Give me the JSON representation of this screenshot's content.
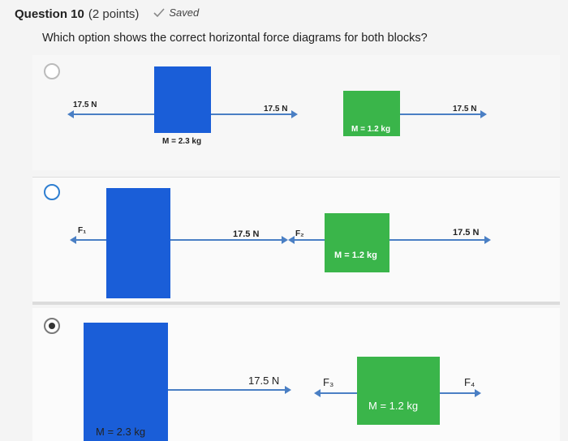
{
  "header": {
    "question_title": "Question 10",
    "points": "(2 points)",
    "saved_label": "Saved"
  },
  "question": {
    "text": "Which option shows the correct horizontal force diagrams for both blocks?"
  },
  "options": [
    {
      "selected": false,
      "left_block": {
        "mass_label": "M = 2.3 kg",
        "left_force": "17.5 N",
        "right_force": "17.5 N"
      },
      "right_block": {
        "mass_label": "M = 1.2 kg",
        "right_force": "17.5 N"
      }
    },
    {
      "selected": false,
      "left_block": {
        "left_force": "F₁",
        "right_force": "17.5 N"
      },
      "right_block": {
        "mass_label": "M = 1.2 kg",
        "left_force": "F₂",
        "right_force": "17.5 N"
      }
    },
    {
      "selected": true,
      "left_block": {
        "mass_label": "M = 2.3 kg",
        "right_force": "17.5 N"
      },
      "right_block": {
        "mass_label": "M = 1.2 kg",
        "left_force": "F₃",
        "right_force": "F₄"
      }
    }
  ],
  "colors": {
    "blue_block": "#1a5ed8",
    "green_block": "#3ab54a",
    "arrow": "#4a7fc4"
  }
}
